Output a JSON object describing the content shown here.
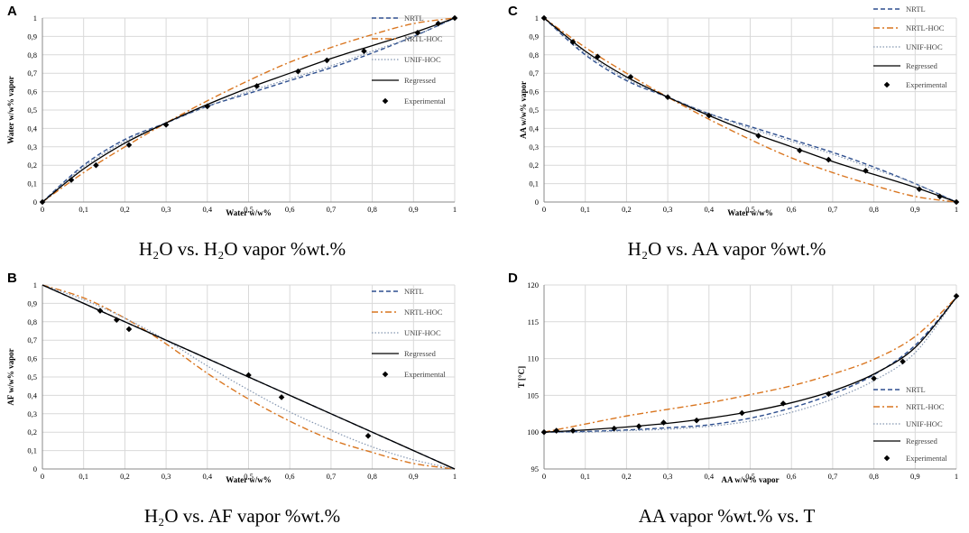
{
  "colors": {
    "nrtl": "#2e4f8f",
    "nrtl_hoc": "#d9751f",
    "unif_hoc": "#8496b0",
    "regressed": "#000000",
    "experimental": "#000000",
    "grid": "#d9d9d9"
  },
  "panels": [
    {
      "letter": "A",
      "caption": "H₂O vs. H₂O vapor %wt.%"
    },
    {
      "letter": "C",
      "caption": "H₂O vs. AA vapor %wt.%"
    },
    {
      "letter": "B",
      "caption": "H₂O vs. AF vapor %wt.%"
    },
    {
      "letter": "D",
      "caption": "AA vapor %wt.% vs. T"
    }
  ],
  "chart_data": [
    {
      "id": "A",
      "type": "line",
      "xlabel": "Water w/w%",
      "ylabel": "Water w/w% vapor",
      "xlim": [
        0,
        1
      ],
      "ylim": [
        0,
        1
      ],
      "xticks": [
        "0",
        "0,1",
        "0,2",
        "0,3",
        "0,4",
        "0,5",
        "0,6",
        "0,7",
        "0,8",
        "0,9",
        "1"
      ],
      "yticks": [
        "0",
        "0,1",
        "0,2",
        "0,3",
        "0,4",
        "0,5",
        "0,6",
        "0,7",
        "0,8",
        "0,9",
        "1"
      ],
      "legend": [
        "NRTL",
        "NRTL-HOC",
        "UNIF-HOC",
        "Regressed",
        "Experimental"
      ],
      "series": [
        {
          "name": "NRTL",
          "style": "dash",
          "x": [
            0,
            0.1,
            0.2,
            0.3,
            0.4,
            0.5,
            0.6,
            0.7,
            0.8,
            0.9,
            1
          ],
          "y": [
            0,
            0.2,
            0.34,
            0.43,
            0.52,
            0.59,
            0.66,
            0.73,
            0.81,
            0.9,
            1
          ]
        },
        {
          "name": "NRTL-HOC",
          "style": "dashdot",
          "x": [
            0,
            0.1,
            0.2,
            0.3,
            0.4,
            0.5,
            0.6,
            0.7,
            0.8,
            0.9,
            1
          ],
          "y": [
            0,
            0.16,
            0.3,
            0.43,
            0.55,
            0.66,
            0.76,
            0.84,
            0.91,
            0.97,
            1
          ]
        },
        {
          "name": "UNIF-HOC",
          "style": "dot",
          "x": [
            0,
            0.1,
            0.2,
            0.3,
            0.4,
            0.5,
            0.6,
            0.7,
            0.8,
            0.9,
            1
          ],
          "y": [
            0,
            0.19,
            0.33,
            0.43,
            0.52,
            0.6,
            0.67,
            0.74,
            0.82,
            0.9,
            1
          ]
        },
        {
          "name": "Regressed",
          "style": "solid",
          "x": [
            0,
            0.1,
            0.2,
            0.3,
            0.4,
            0.5,
            0.6,
            0.7,
            0.8,
            0.9,
            1
          ],
          "y": [
            0,
            0.18,
            0.32,
            0.43,
            0.53,
            0.62,
            0.7,
            0.78,
            0.85,
            0.92,
            1
          ]
        }
      ],
      "points": {
        "name": "Experimental",
        "x": [
          0,
          0.07,
          0.13,
          0.21,
          0.3,
          0.4,
          0.52,
          0.62,
          0.69,
          0.78,
          0.91,
          0.96,
          1
        ],
        "y": [
          0,
          0.12,
          0.2,
          0.31,
          0.42,
          0.52,
          0.63,
          0.71,
          0.77,
          0.82,
          0.92,
          0.97,
          1
        ]
      }
    },
    {
      "id": "C",
      "type": "line",
      "xlabel": "Water w/w%",
      "ylabel": "AA w/w% vapor",
      "xlim": [
        0,
        1
      ],
      "ylim": [
        0,
        1
      ],
      "xticks": [
        "0",
        "0,1",
        "0,2",
        "0,3",
        "0,4",
        "0,5",
        "0,6",
        "0,7",
        "0,8",
        "0,9",
        "1"
      ],
      "yticks": [
        "0",
        "0,1",
        "0,2",
        "0,3",
        "0,4",
        "0,5",
        "0,6",
        "0,7",
        "0,8",
        "0,9",
        "1"
      ],
      "legend": [
        "NRTL",
        "NRTL-HOC",
        "UNIF-HOC",
        "Regressed",
        "Experimental"
      ],
      "series": [
        {
          "name": "NRTL",
          "style": "dash",
          "x": [
            0,
            0.1,
            0.2,
            0.3,
            0.4,
            0.5,
            0.6,
            0.7,
            0.8,
            0.9,
            1
          ],
          "y": [
            1,
            0.8,
            0.66,
            0.57,
            0.48,
            0.41,
            0.34,
            0.27,
            0.19,
            0.1,
            0
          ]
        },
        {
          "name": "NRTL-HOC",
          "style": "dashdot",
          "x": [
            0,
            0.1,
            0.2,
            0.3,
            0.4,
            0.5,
            0.6,
            0.7,
            0.8,
            0.9,
            1
          ],
          "y": [
            1,
            0.84,
            0.7,
            0.57,
            0.45,
            0.34,
            0.24,
            0.16,
            0.09,
            0.03,
            0
          ]
        },
        {
          "name": "UNIF-HOC",
          "style": "dot",
          "x": [
            0,
            0.1,
            0.2,
            0.3,
            0.4,
            0.5,
            0.6,
            0.7,
            0.8,
            0.9,
            1
          ],
          "y": [
            1,
            0.81,
            0.67,
            0.57,
            0.48,
            0.4,
            0.33,
            0.26,
            0.18,
            0.1,
            0
          ]
        },
        {
          "name": "Regressed",
          "style": "solid",
          "x": [
            0,
            0.1,
            0.2,
            0.3,
            0.4,
            0.5,
            0.6,
            0.7,
            0.8,
            0.9,
            1
          ],
          "y": [
            1,
            0.82,
            0.68,
            0.57,
            0.47,
            0.38,
            0.3,
            0.22,
            0.15,
            0.08,
            0
          ]
        }
      ],
      "points": {
        "name": "Experimental",
        "x": [
          0,
          0.07,
          0.13,
          0.21,
          0.3,
          0.4,
          0.52,
          0.62,
          0.69,
          0.78,
          0.91,
          0.96,
          1
        ],
        "y": [
          1,
          0.87,
          0.79,
          0.68,
          0.57,
          0.47,
          0.36,
          0.28,
          0.23,
          0.17,
          0.07,
          0.03,
          0
        ]
      }
    },
    {
      "id": "B",
      "type": "line",
      "xlabel": "Water w/w%",
      "ylabel": "AF w/w% vapor",
      "xlim": [
        0,
        1
      ],
      "ylim": [
        0,
        1
      ],
      "xticks": [
        "0",
        "0,1",
        "0,2",
        "0,3",
        "0,4",
        "0,5",
        "0,6",
        "0,7",
        "0,8",
        "0,9",
        "1"
      ],
      "yticks": [
        "0",
        "0,1",
        "0,2",
        "0,3",
        "0,4",
        "0,5",
        "0,6",
        "0,7",
        "0,8",
        "0,9",
        "1"
      ],
      "legend": [
        "NRTL",
        "NRTL-HOC",
        "UNIF-HOC",
        "Regressed",
        "Experimental"
      ],
      "series": [
        {
          "name": "NRTL",
          "style": "dash",
          "x": [
            0,
            0.1,
            0.2,
            0.3,
            0.4,
            0.5,
            0.6,
            0.7,
            0.8,
            0.9,
            1
          ],
          "y": [
            1,
            0.9,
            0.8,
            0.7,
            0.6,
            0.5,
            0.4,
            0.3,
            0.2,
            0.1,
            0
          ]
        },
        {
          "name": "NRTL-HOC",
          "style": "dashdot",
          "x": [
            0,
            0.1,
            0.2,
            0.3,
            0.4,
            0.5,
            0.6,
            0.7,
            0.8,
            0.9,
            1
          ],
          "y": [
            1,
            0.93,
            0.82,
            0.68,
            0.52,
            0.38,
            0.26,
            0.16,
            0.09,
            0.03,
            0
          ]
        },
        {
          "name": "UNIF-HOC",
          "style": "dot",
          "x": [
            0,
            0.1,
            0.2,
            0.3,
            0.4,
            0.5,
            0.6,
            0.7,
            0.8,
            0.9,
            1
          ],
          "y": [
            1,
            0.92,
            0.82,
            0.7,
            0.56,
            0.43,
            0.31,
            0.21,
            0.12,
            0.05,
            0
          ]
        },
        {
          "name": "Regressed",
          "style": "solid",
          "x": [
            0,
            0.1,
            0.2,
            0.3,
            0.4,
            0.5,
            0.6,
            0.7,
            0.8,
            0.9,
            1
          ],
          "y": [
            1,
            0.9,
            0.8,
            0.7,
            0.6,
            0.5,
            0.4,
            0.3,
            0.2,
            0.1,
            0
          ]
        }
      ],
      "points": {
        "name": "Experimental",
        "x": [
          0.14,
          0.18,
          0.21,
          0.5,
          0.58,
          0.79
        ],
        "y": [
          0.86,
          0.81,
          0.76,
          0.51,
          0.39,
          0.18
        ]
      }
    },
    {
      "id": "D",
      "type": "line",
      "xlabel": "AA w/w% vapor",
      "ylabel": "T [°C]",
      "xlim": [
        0,
        1
      ],
      "ylim": [
        95,
        120
      ],
      "xticks": [
        "0",
        "0,1",
        "0,2",
        "0,3",
        "0,4",
        "0,5",
        "0,6",
        "0,7",
        "0,8",
        "0,9",
        "1"
      ],
      "yticks": [
        "95",
        "100",
        "105",
        "110",
        "115",
        "120"
      ],
      "legend": [
        "NRTL",
        "NRTL-HOC",
        "UNIF-HOC",
        "Regressed",
        "Experimental"
      ],
      "series": [
        {
          "name": "NRTL",
          "style": "dash",
          "x": [
            0,
            0.1,
            0.2,
            0.3,
            0.4,
            0.5,
            0.6,
            0.7,
            0.8,
            0.9,
            1
          ],
          "y": [
            100,
            100.1,
            100.3,
            100.6,
            101,
            101.9,
            103.3,
            105.2,
            107.8,
            111.8,
            118.3
          ]
        },
        {
          "name": "NRTL-HOC",
          "style": "dashdot",
          "x": [
            0,
            0.1,
            0.2,
            0.3,
            0.4,
            0.5,
            0.6,
            0.7,
            0.8,
            0.9,
            1
          ],
          "y": [
            100,
            101.1,
            102.2,
            103.1,
            104,
            105.1,
            106.3,
            107.9,
            109.9,
            113,
            118.3
          ]
        },
        {
          "name": "UNIF-HOC",
          "style": "dot",
          "x": [
            0,
            0.1,
            0.2,
            0.3,
            0.4,
            0.5,
            0.6,
            0.7,
            0.8,
            0.9,
            1
          ],
          "y": [
            100,
            100,
            100.2,
            100.4,
            100.8,
            101.5,
            102.7,
            104.5,
            107,
            110.8,
            118.3
          ]
        },
        {
          "name": "Regressed",
          "style": "solid",
          "x": [
            0,
            0.1,
            0.2,
            0.3,
            0.4,
            0.5,
            0.6,
            0.7,
            0.8,
            0.9,
            1
          ],
          "y": [
            100,
            100.3,
            100.7,
            101.2,
            101.9,
            102.8,
            104,
            105.6,
            107.9,
            111.5,
            118.3
          ]
        }
      ],
      "points": {
        "name": "Experimental",
        "x": [
          0,
          0.03,
          0.07,
          0.17,
          0.23,
          0.29,
          0.37,
          0.48,
          0.58,
          0.69,
          0.8,
          0.87,
          1
        ],
        "y": [
          100,
          100.2,
          100.2,
          100.5,
          100.8,
          101.3,
          101.6,
          102.6,
          103.9,
          105.2,
          107.3,
          109.6,
          118.5
        ]
      }
    }
  ]
}
